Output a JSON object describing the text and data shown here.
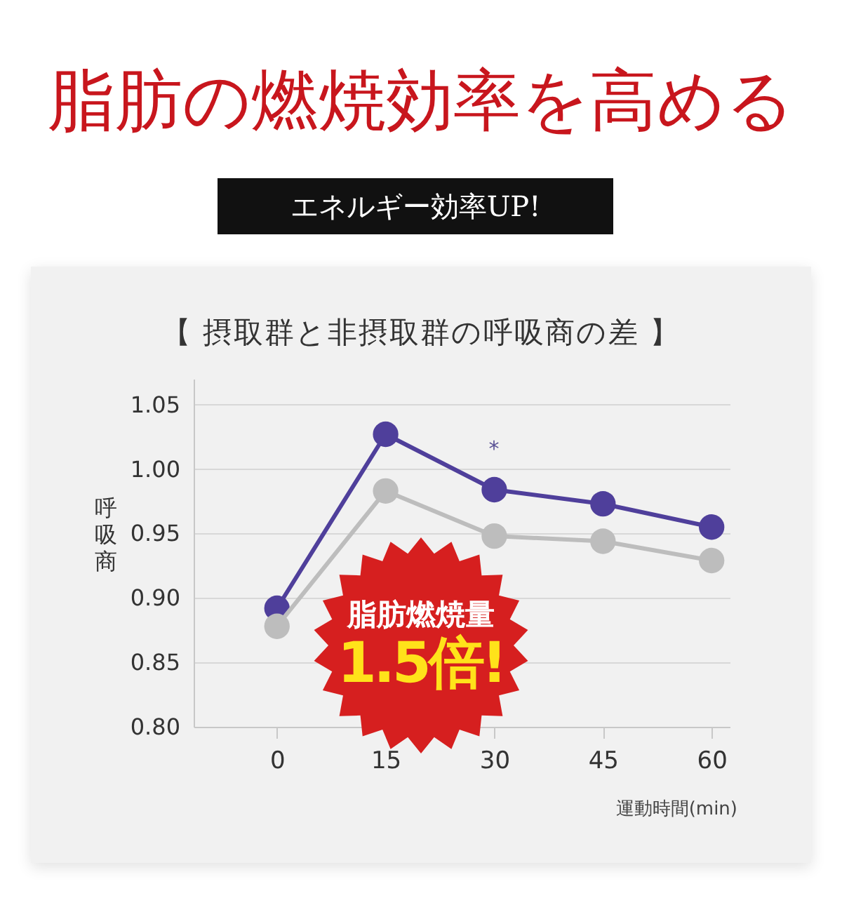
{
  "chart_data": {
    "type": "line",
    "title": "脂肪の燃焼効率を高める",
    "subtitle": "エネルギー効率UP!",
    "xlabel": "運動時間(min)",
    "ylabel": "呼吸商",
    "annotations": [
      "【 摂取群と非摂取群の呼吸商の差 】",
      "*",
      "脂肪燃焼量",
      "1.5倍!"
    ],
    "x": [
      0,
      15,
      30,
      45,
      60
    ],
    "series": [
      {
        "color": "#4f3f9b",
        "values": [
          0.892,
          1.027,
          0.984,
          0.973,
          0.955
        ]
      },
      {
        "color": "#bdbdbd",
        "values": [
          0.878,
          0.983,
          0.948,
          0.944,
          0.929
        ]
      }
    ],
    "xlim": [
      -11.5,
      62.5
    ],
    "xticks": [
      0,
      15,
      30,
      45,
      60
    ],
    "ylim": [
      0.8,
      1.07
    ],
    "yticks": [
      {
        "value": 0.8,
        "label": "0.80"
      },
      {
        "value": 0.85,
        "label": "0.85"
      },
      {
        "value": 0.9,
        "label": "0.90"
      },
      {
        "value": 0.95,
        "label": "0.95"
      },
      {
        "value": 1.0,
        "label": "1.00"
      },
      {
        "value": 1.05,
        "label": "1.05"
      }
    ],
    "grid": "y",
    "marker": "circle",
    "line_style": "solid"
  }
}
